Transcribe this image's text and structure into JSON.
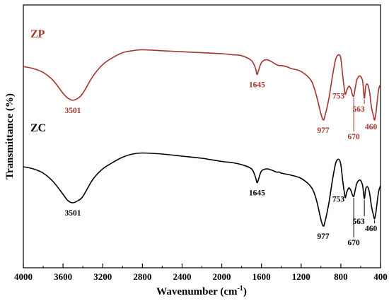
{
  "chart_data": {
    "type": "line",
    "xlabel": "Wavenumber (cm",
    "xlabel_sup": "-1",
    "xlabel_close": ")",
    "ylabel": "Transmittance (%)",
    "xlim": [
      4000,
      400
    ],
    "x_reversed": true,
    "xticks": [
      "4000",
      "3600",
      "3200",
      "2800",
      "2400",
      "2000",
      "1600",
      "1200",
      "800",
      "400"
    ],
    "grid": false,
    "series": [
      {
        "name": "ZP",
        "color": "#a3342c",
        "points": [
          [
            4000,
            72
          ],
          [
            3900,
            70
          ],
          [
            3800,
            66
          ],
          [
            3700,
            58
          ],
          [
            3600,
            45
          ],
          [
            3550,
            40
          ],
          [
            3501,
            38
          ],
          [
            3450,
            40
          ],
          [
            3400,
            45
          ],
          [
            3300,
            62
          ],
          [
            3200,
            74
          ],
          [
            3100,
            81
          ],
          [
            3000,
            86
          ],
          [
            2900,
            88
          ],
          [
            2800,
            89
          ],
          [
            2600,
            88
          ],
          [
            2400,
            87
          ],
          [
            2200,
            86
          ],
          [
            2000,
            85
          ],
          [
            1900,
            84
          ],
          [
            1800,
            83
          ],
          [
            1700,
            78
          ],
          [
            1660,
            70
          ],
          [
            1645,
            64
          ],
          [
            1630,
            68
          ],
          [
            1600,
            76
          ],
          [
            1550,
            79
          ],
          [
            1500,
            77
          ],
          [
            1450,
            74
          ],
          [
            1420,
            73
          ],
          [
            1400,
            73
          ],
          [
            1350,
            72
          ],
          [
            1300,
            70
          ],
          [
            1200,
            67
          ],
          [
            1100,
            58
          ],
          [
            1050,
            44
          ],
          [
            1000,
            24
          ],
          [
            977,
            18
          ],
          [
            960,
            22
          ],
          [
            920,
            40
          ],
          [
            880,
            65
          ],
          [
            850,
            80
          ],
          [
            820,
            84
          ],
          [
            800,
            80
          ],
          [
            780,
            62
          ],
          [
            760,
            46
          ],
          [
            753,
            44
          ],
          [
            740,
            48
          ],
          [
            720,
            52
          ],
          [
            700,
            50
          ],
          [
            685,
            44
          ],
          [
            670,
            42
          ],
          [
            655,
            50
          ],
          [
            640,
            58
          ],
          [
            620,
            62
          ],
          [
            600,
            62
          ],
          [
            580,
            57
          ],
          [
            563,
            40
          ],
          [
            550,
            52
          ],
          [
            530,
            54
          ],
          [
            510,
            46
          ],
          [
            490,
            30
          ],
          [
            470,
            22
          ],
          [
            460,
            18
          ],
          [
            445,
            26
          ],
          [
            420,
            48
          ],
          [
            400,
            54
          ]
        ],
        "peaks": [
          {
            "x": 3501,
            "label": "3501"
          },
          {
            "x": 1645,
            "label": "1645"
          },
          {
            "x": 977,
            "label": "977"
          },
          {
            "x": 753,
            "label": "753"
          },
          {
            "x": 670,
            "label": "670"
          },
          {
            "x": 563,
            "label": "563"
          },
          {
            "x": 460,
            "label": "460"
          }
        ]
      },
      {
        "name": "ZC",
        "color": "#000000",
        "points": [
          [
            4000,
            66
          ],
          [
            3900,
            64
          ],
          [
            3800,
            60
          ],
          [
            3700,
            52
          ],
          [
            3600,
            40
          ],
          [
            3550,
            34
          ],
          [
            3501,
            32
          ],
          [
            3450,
            34
          ],
          [
            3400,
            38
          ],
          [
            3300,
            54
          ],
          [
            3200,
            64
          ],
          [
            3100,
            70
          ],
          [
            3000,
            75
          ],
          [
            2900,
            78
          ],
          [
            2800,
            79
          ],
          [
            2600,
            78
          ],
          [
            2400,
            76
          ],
          [
            2200,
            74
          ],
          [
            2000,
            71
          ],
          [
            1900,
            70
          ],
          [
            1800,
            68
          ],
          [
            1700,
            64
          ],
          [
            1660,
            56
          ],
          [
            1645,
            51
          ],
          [
            1630,
            54
          ],
          [
            1600,
            62
          ],
          [
            1550,
            64
          ],
          [
            1500,
            63
          ],
          [
            1450,
            61
          ],
          [
            1420,
            61
          ],
          [
            1400,
            60
          ],
          [
            1350,
            59
          ],
          [
            1300,
            58
          ],
          [
            1200,
            55
          ],
          [
            1100,
            47
          ],
          [
            1050,
            36
          ],
          [
            1000,
            16
          ],
          [
            977,
            10
          ],
          [
            960,
            14
          ],
          [
            920,
            32
          ],
          [
            880,
            56
          ],
          [
            850,
            70
          ],
          [
            820,
            73
          ],
          [
            800,
            68
          ],
          [
            780,
            52
          ],
          [
            760,
            39
          ],
          [
            753,
            37
          ],
          [
            740,
            42
          ],
          [
            720,
            46
          ],
          [
            700,
            44
          ],
          [
            685,
            40
          ],
          [
            670,
            38
          ],
          [
            655,
            44
          ],
          [
            640,
            50
          ],
          [
            620,
            53
          ],
          [
            600,
            53
          ],
          [
            580,
            48
          ],
          [
            563,
            36
          ],
          [
            550,
            45
          ],
          [
            530,
            47
          ],
          [
            510,
            41
          ],
          [
            490,
            28
          ],
          [
            470,
            20
          ],
          [
            460,
            17
          ],
          [
            445,
            24
          ],
          [
            420,
            42
          ],
          [
            400,
            48
          ]
        ],
        "peaks": [
          {
            "x": 3501,
            "label": "3501"
          },
          {
            "x": 1645,
            "label": "1645"
          },
          {
            "x": 977,
            "label": "977"
          },
          {
            "x": 753,
            "label": "753"
          },
          {
            "x": 670,
            "label": "670"
          },
          {
            "x": 563,
            "label": "563"
          },
          {
            "x": 460,
            "label": "460"
          }
        ]
      }
    ]
  }
}
